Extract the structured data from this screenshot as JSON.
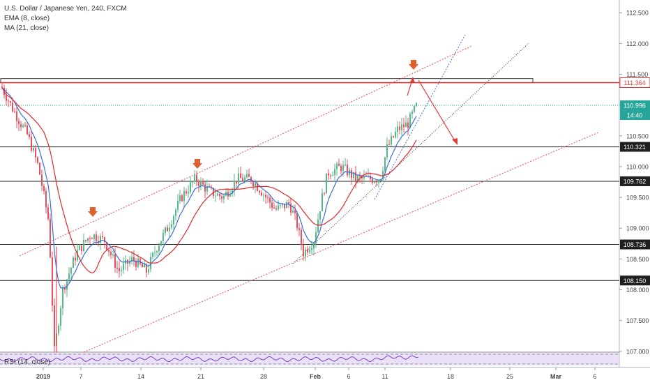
{
  "legend": {
    "symbol_title": "U.S. Dollar / Japanese Yen, 240, FXCM",
    "ema_label": "EMA (8, close)",
    "ma_label": "MA (21, close)"
  },
  "rsi_label": "RSI (14, close)",
  "colors": {
    "up": "#53b987",
    "down": "#eb4d5c",
    "ema": "#3b6fd6",
    "ma": "#e0282e",
    "teal_line": "#26a69a",
    "channel": "#e94b4b",
    "resistance_box": "#333333",
    "rsi": "#7b3fc1",
    "rsi_band": "#e6dcf7"
  },
  "chart_data": {
    "type": "candlestick",
    "title": "U.S. Dollar / Japanese Yen, 240, FXCM",
    "ylim": [
      106.95,
      112.7
    ],
    "y_ticks": [
      "112.500",
      "112.000",
      "111.500",
      "111.000",
      "110.500",
      "110.000",
      "109.500",
      "109.000",
      "108.500",
      "108.000",
      "107.500",
      "107.000"
    ],
    "x_ticks": [
      "2019",
      "7",
      "14",
      "21",
      "28",
      "Feb",
      "6",
      "11",
      "18",
      "25",
      "Mar",
      "6"
    ],
    "price_labels": [
      {
        "value": 111.364,
        "text": "111.364",
        "style": "red"
      },
      {
        "value": 110.996,
        "text": "110.996",
        "style": "teal"
      },
      {
        "text": "14:40",
        "style": "teal"
      },
      {
        "value": 110.321,
        "text": "110.321",
        "style": "dark"
      },
      {
        "value": 109.762,
        "text": "109.762",
        "style": "dark"
      },
      {
        "value": 108.736,
        "text": "108.736",
        "style": "dark"
      },
      {
        "value": 108.15,
        "text": "108.150",
        "style": "dark"
      }
    ],
    "horizontal_levels": [
      110.321,
      109.762,
      108.736,
      108.15
    ],
    "resistance_zone": {
      "low": 111.364,
      "high": 111.43
    },
    "current_price": 110.996,
    "series": [
      {
        "name": "EMA (8, close)",
        "role": "ema"
      },
      {
        "name": "MA (21, close)",
        "role": "ma"
      }
    ],
    "rsi": {
      "name": "RSI (14, close)"
    }
  }
}
